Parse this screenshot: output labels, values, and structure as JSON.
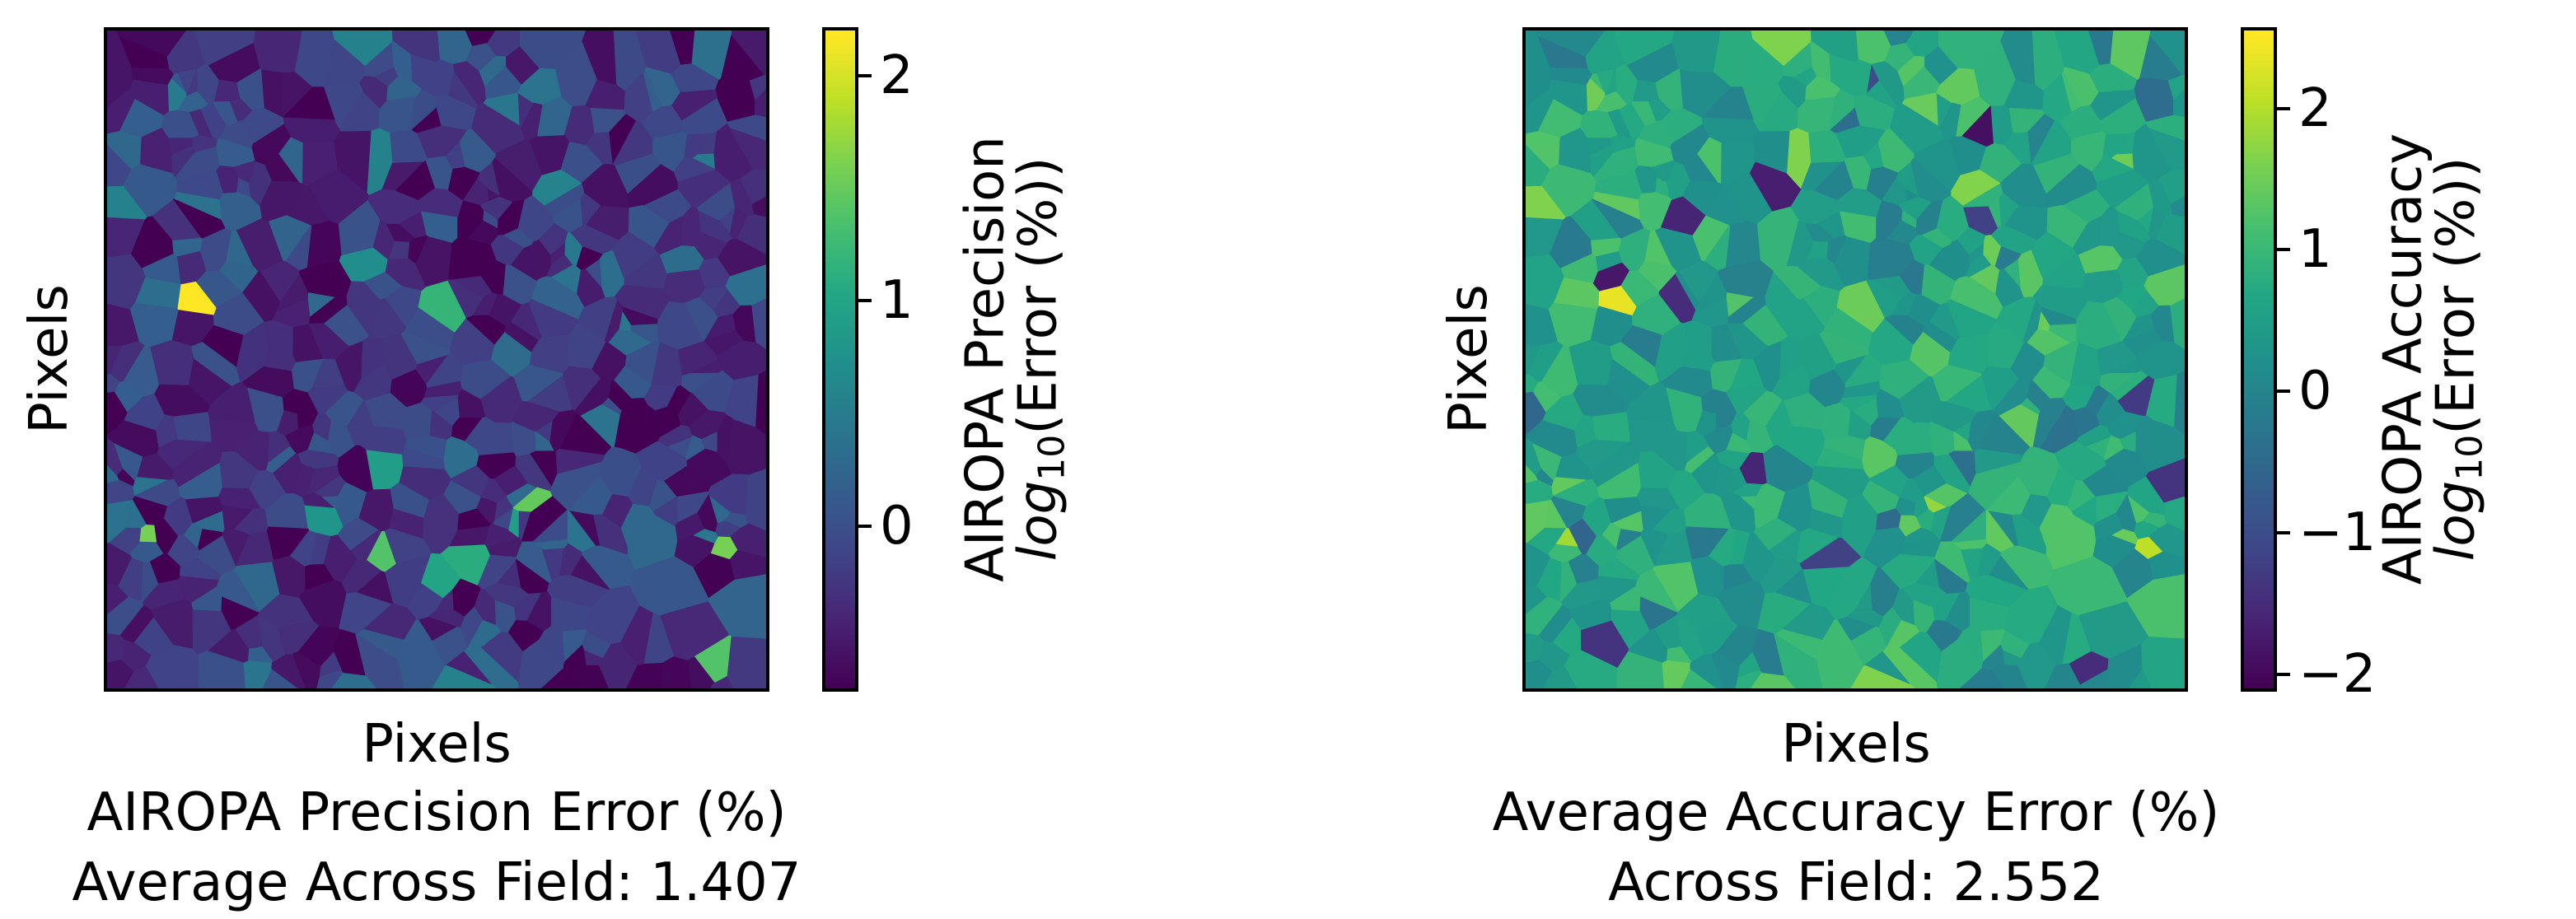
{
  "chart_data": [
    {
      "type": "heatmap",
      "xlabel": "Pixels",
      "ylabel": "Pixels",
      "caption_line1": "AIROPA Precision Error (%)",
      "caption_line2": "Average Across Field: 1.407",
      "colorbar": {
        "label_line1": "AIROPA Precision",
        "label_line2_prefix": "log",
        "label_line2_sub": "10",
        "label_line2_suffix": "(Error (%))",
        "range": [
          -0.72,
          2.2
        ],
        "ticks": [
          0,
          1,
          2
        ],
        "tick_labels": [
          "0",
          "1",
          "2"
        ],
        "colormap": "viridis"
      },
      "base_value": -0.25,
      "spread": 0.35,
      "hotspots": [
        {
          "x": 0.135,
          "y": 0.415,
          "value": 2.2
        },
        {
          "x": 0.06,
          "y": 0.77,
          "value": 1.6
        },
        {
          "x": 0.51,
          "y": 0.43,
          "value": 1.2
        },
        {
          "x": 0.41,
          "y": 0.66,
          "value": 0.9
        },
        {
          "x": 0.62,
          "y": 0.74,
          "value": 0.9
        },
        {
          "x": 0.56,
          "y": 0.8,
          "value": 1.1
        },
        {
          "x": 0.42,
          "y": 0.79,
          "value": 1.4
        },
        {
          "x": 0.33,
          "y": 0.73,
          "value": 0.8
        },
        {
          "x": 0.63,
          "y": 0.72,
          "value": 1.5
        },
        {
          "x": 0.94,
          "y": 0.79,
          "value": 1.6
        },
        {
          "x": 0.5,
          "y": 0.85,
          "value": 1.0
        },
        {
          "x": 0.92,
          "y": 0.98,
          "value": 1.4
        },
        {
          "x": 0.4,
          "y": 0.35,
          "value": 0.7
        }
      ]
    },
    {
      "type": "heatmap",
      "xlabel": "Pixels",
      "ylabel": "Pixels",
      "caption_line1": "Average Accuracy Error (%)",
      "caption_line2": "Across Field: 2.552",
      "colorbar": {
        "label_line1": "AIROPA Accuracy",
        "label_line2_prefix": "log",
        "label_line2_sub": "10",
        "label_line2_suffix": "(Error (%))",
        "range": [
          -2.1,
          2.55
        ],
        "ticks": [
          -2,
          -1,
          0,
          1,
          2
        ],
        "tick_labels": [
          "−2",
          "−1",
          "0",
          "1",
          "2"
        ],
        "colormap": "viridis"
      },
      "base_value": 0.6,
      "spread": 0.45,
      "hotspots": [
        {
          "x": 0.14,
          "y": 0.41,
          "value": 2.4
        },
        {
          "x": 0.06,
          "y": 0.78,
          "value": 1.9
        },
        {
          "x": 0.62,
          "y": 0.72,
          "value": 1.8
        },
        {
          "x": 0.95,
          "y": 0.79,
          "value": 2.1
        },
        {
          "x": 0.51,
          "y": 0.43,
          "value": 1.5
        },
        {
          "x": 0.58,
          "y": 0.75,
          "value": 1.4
        },
        {
          "x": 0.69,
          "y": 0.15,
          "value": -1.9
        },
        {
          "x": 0.37,
          "y": 0.23,
          "value": -1.7
        },
        {
          "x": 0.24,
          "y": 0.28,
          "value": -1.6
        },
        {
          "x": 0.13,
          "y": 0.37,
          "value": -1.8
        },
        {
          "x": 0.24,
          "y": 0.4,
          "value": -1.5
        },
        {
          "x": 0.34,
          "y": 0.67,
          "value": -1.6
        },
        {
          "x": 0.11,
          "y": 0.92,
          "value": -1.4
        },
        {
          "x": 0.7,
          "y": 0.28,
          "value": -1.2
        },
        {
          "x": 0.92,
          "y": 0.55,
          "value": -1.3
        },
        {
          "x": 0.98,
          "y": 0.7,
          "value": -1.4
        },
        {
          "x": 0.45,
          "y": 0.8,
          "value": -1.2
        },
        {
          "x": 0.85,
          "y": 0.98,
          "value": -1.5
        },
        {
          "x": 0.53,
          "y": 0.08,
          "value": -1.0
        }
      ]
    }
  ]
}
